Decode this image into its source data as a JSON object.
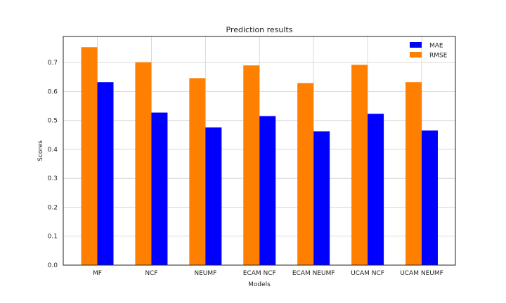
{
  "chart_data": {
    "type": "bar",
    "title": "Prediction results",
    "xlabel": "Models",
    "ylabel": "Scores",
    "categories": [
      "MF",
      "NCF",
      "NEUMF",
      "ECAM NCF",
      "ECAM NEUMF",
      "UCAM NCF",
      "UCAM NEUMF"
    ],
    "series": [
      {
        "name": "MAE",
        "color": "#0000ff",
        "values": [
          0.632,
          0.527,
          0.476,
          0.515,
          0.462,
          0.523,
          0.465
        ]
      },
      {
        "name": "RMSE",
        "color": "#ff7f00",
        "values": [
          0.753,
          0.701,
          0.646,
          0.69,
          0.629,
          0.692,
          0.632
        ]
      }
    ],
    "ylim": [
      0,
      0.79
    ],
    "yticks": [
      0.0,
      0.1,
      0.2,
      0.3,
      0.4,
      0.5,
      0.6,
      0.7
    ],
    "ytick_labels": [
      "0.0",
      "0.1",
      "0.2",
      "0.3",
      "0.4",
      "0.5",
      "0.6",
      "0.7"
    ],
    "grid": true,
    "legend_position": "top-right"
  }
}
